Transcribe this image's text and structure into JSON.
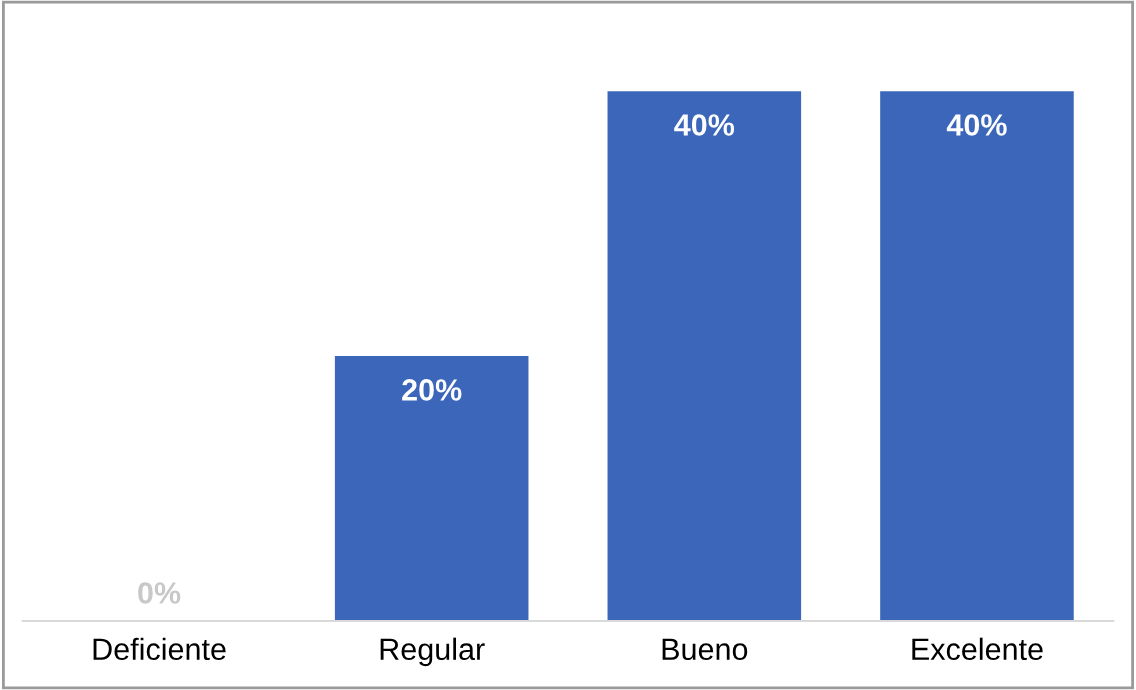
{
  "chart_data": {
    "type": "bar",
    "categories": [
      "Deficiente",
      "Regular",
      "Bueno",
      "Excelente"
    ],
    "values": [
      0,
      20,
      40,
      40
    ],
    "value_labels": [
      "0%",
      "20%",
      "40%",
      "40%"
    ],
    "color": "#3b66b9",
    "grid": false,
    "legend": false
  }
}
